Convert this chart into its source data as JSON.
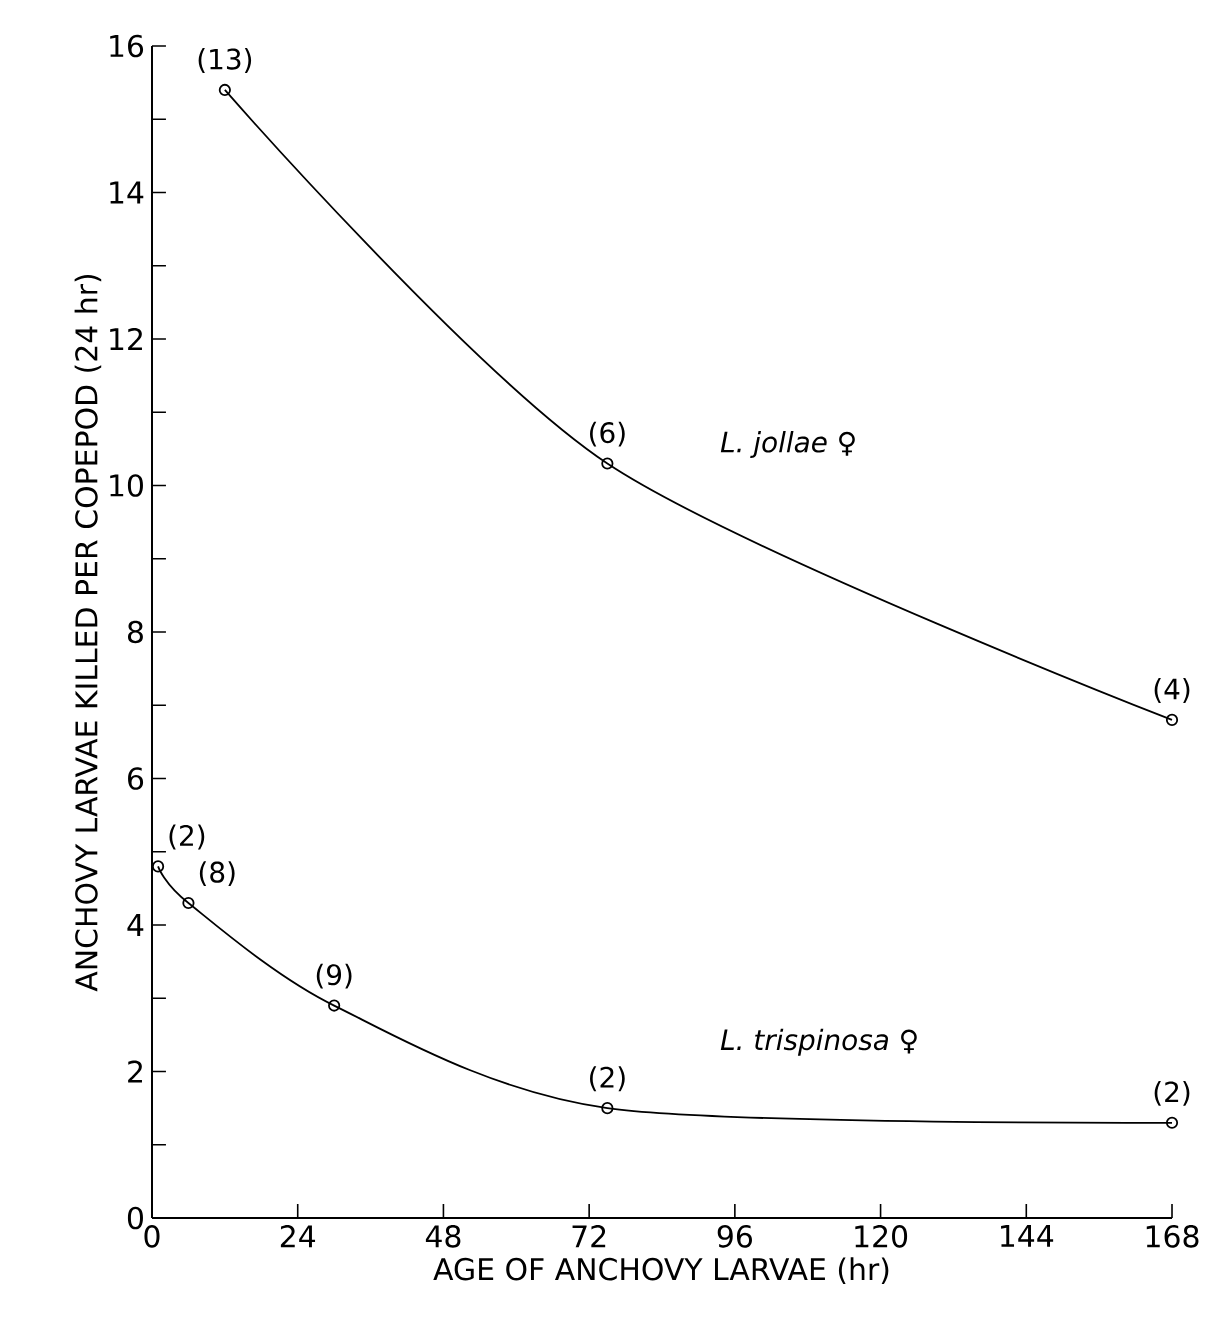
{
  "chart_data": {
    "type": "line",
    "xlabel": "AGE OF ANCHOVY LARVAE (hr)",
    "ylabel": "ANCHOVY LARVAE KILLED PER COPEPOD (24 hr)",
    "xlim": [
      0,
      168
    ],
    "ylim": [
      0,
      16
    ],
    "xticks": [
      0,
      24,
      48,
      72,
      96,
      120,
      144,
      168
    ],
    "yticks": [
      0,
      {
        "value": 1,
        "label": null
      },
      2,
      {
        "value": 3,
        "label": null
      },
      4,
      {
        "value": 5,
        "label": null
      },
      6,
      {
        "value": 7,
        "label": null
      },
      8,
      {
        "value": 9,
        "label": null
      },
      10,
      {
        "value": 11,
        "label": null
      },
      12,
      {
        "value": 13,
        "label": null
      },
      14,
      {
        "value": 15,
        "label": null
      },
      16
    ],
    "marker": "circle",
    "line_style": "solid",
    "grid": false,
    "legend": false,
    "series": [
      {
        "name": "*L. jollae* ♀",
        "color": "#000000",
        "x": [
          12,
          75,
          168
        ],
        "values": [
          15.4,
          10.3,
          6.8
        ]
      },
      {
        "name": "*L. trispinosa* ♀",
        "color": "#000000",
        "x": [
          1,
          6,
          30,
          75,
          168
        ],
        "values": [
          4.8,
          4.3,
          2.9,
          1.5,
          1.3
        ]
      }
    ],
    "annotations": [
      {
        "text": "(13)",
        "x": 12,
        "y": 15.4
      },
      {
        "text": "(6)",
        "x": 75,
        "y": 10.3
      },
      {
        "text": "(4)",
        "x": 168,
        "y": 6.8
      },
      {
        "text": "(2)",
        "x": 1,
        "y": 4.8
      },
      {
        "text": "(8)",
        "x": 6,
        "y": 4.3
      },
      {
        "text": "(9)",
        "x": 30,
        "y": 2.9
      },
      {
        "text": "(2)",
        "x": 75,
        "y": 1.5
      },
      {
        "text": "(2)",
        "x": 168,
        "y": 1.3
      }
    ]
  }
}
